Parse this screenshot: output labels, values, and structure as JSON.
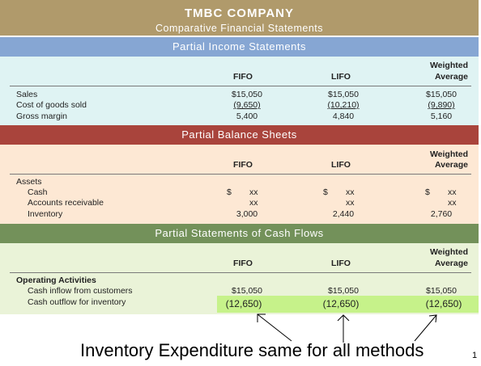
{
  "company": "TMBC COMPANY",
  "subtitle": "Comparative Financial Statements",
  "columns": {
    "fifo": "FIFO",
    "lifo": "LIFO",
    "wa_line1": "Weighted",
    "wa_line2": "Average"
  },
  "income": {
    "title": "Partial Income Statements",
    "rows": [
      {
        "label": "Sales",
        "fifo": "$15,050",
        "lifo": "$15,050",
        "wa": "$15,050"
      },
      {
        "label": "Cost of goods sold",
        "fifo": "(9,650)",
        "lifo": "(10,210)",
        "wa": "(9,890)"
      },
      {
        "label": "Gross margin",
        "fifo": "5,400",
        "lifo": "4,840",
        "wa": "5,160"
      }
    ]
  },
  "balance": {
    "title": "Partial Balance Sheets",
    "group": "Assets",
    "rows": [
      {
        "label": "Cash",
        "fifo": "$",
        "fifo2": "xx",
        "lifo": "$",
        "lifo2": "xx",
        "wa": "$",
        "wa2": "xx"
      },
      {
        "label": "Accounts receivable",
        "fifo": "xx",
        "lifo": "xx",
        "wa": "xx"
      },
      {
        "label": "Inventory",
        "fifo": "3,000",
        "lifo": "2,440",
        "wa": "2,760"
      }
    ]
  },
  "cash": {
    "title": "Partial Statements of Cash Flows",
    "group": "Operating Activities",
    "rows": [
      {
        "label": "Cash inflow from customers",
        "fifo": "$15,050",
        "lifo": "$15,050",
        "wa": "$15,050"
      },
      {
        "label": "Cash outflow for inventory",
        "fifo": "(12,650)",
        "lifo": "(12,650)",
        "wa": "(12,650)"
      }
    ]
  },
  "caption": "Inventory Expenditure same for all methods",
  "page_number": "1",
  "colors": {
    "title_band": "#b09a6b",
    "income_bar": "#86a6d3",
    "income_body": "#dff3f3",
    "balance_bar": "#a9443c",
    "balance_body": "#fde8d4",
    "cash_bar": "#73915a",
    "cash_body": "#eaf3d8",
    "highlight": "#c6f28a"
  }
}
